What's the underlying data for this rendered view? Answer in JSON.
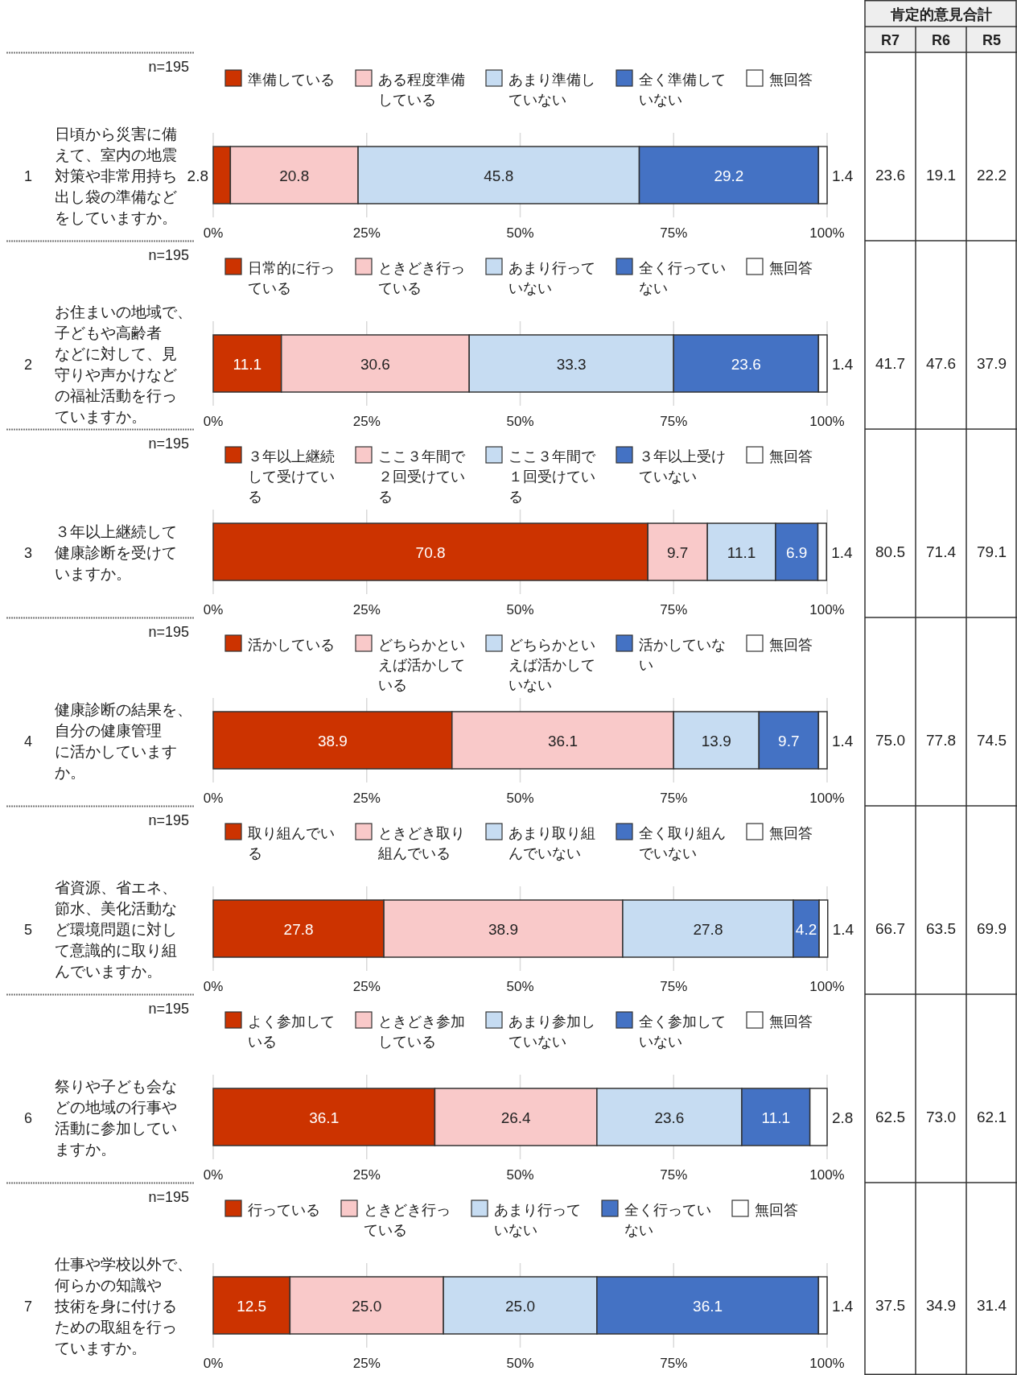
{
  "chart_data": [
    {
      "type": "bar",
      "orientation": "horizontal",
      "stacked": true,
      "title": "日頃から災害に備えて、室内の地震対策や非常用持ち出し袋の準備などをしていますか。",
      "annotations": [
        "1",
        "n=195"
      ],
      "categories": [
        null
      ],
      "legend": "top",
      "grid": "x",
      "data_labels": true,
      "xlim": [
        0,
        100
      ],
      "xticks": [
        {
          "value": 0,
          "label": "0%"
        },
        {
          "value": 25,
          "label": "25%"
        },
        {
          "value": 50,
          "label": "50%"
        },
        {
          "value": 75,
          "label": "75%"
        },
        {
          "value": 100,
          "label": "100%"
        }
      ],
      "series": [
        {
          "name": "準備している",
          "color": "#cc3300",
          "values": [
            2.8
          ]
        },
        {
          "name": "ある程度準備している",
          "color": "#f9c9c9",
          "values": [
            20.8
          ]
        },
        {
          "name": "あまり準備していない",
          "color": "#c6dcf2",
          "values": [
            45.8
          ]
        },
        {
          "name": "全く準備していない",
          "color": "#4472c4",
          "values": [
            29.2
          ]
        },
        {
          "name": "無回答",
          "color": "#ffffff",
          "values": [
            1.4
          ]
        }
      ]
    },
    {
      "type": "bar",
      "orientation": "horizontal",
      "stacked": true,
      "title": "お住まいの地域で、子どもや高齢者などに対して、見守りや声かけなどの福祉活動を行っていますか。",
      "annotations": [
        "2",
        "n=195"
      ],
      "categories": [
        null
      ],
      "legend": "top",
      "grid": "x",
      "data_labels": true,
      "xlim": [
        0,
        100
      ],
      "xticks": [
        {
          "value": 0,
          "label": "0%"
        },
        {
          "value": 25,
          "label": "25%"
        },
        {
          "value": 50,
          "label": "50%"
        },
        {
          "value": 75,
          "label": "75%"
        },
        {
          "value": 100,
          "label": "100%"
        }
      ],
      "series": [
        {
          "name": "日常的に行っている",
          "color": "#cc3300",
          "values": [
            11.1
          ]
        },
        {
          "name": "ときどき行っている",
          "color": "#f9c9c9",
          "values": [
            30.6
          ]
        },
        {
          "name": "あまり行っていない",
          "color": "#c6dcf2",
          "values": [
            33.3
          ]
        },
        {
          "name": "全く行っていない",
          "color": "#4472c4",
          "values": [
            23.6
          ]
        },
        {
          "name": "無回答",
          "color": "#ffffff",
          "values": [
            1.4
          ]
        }
      ]
    },
    {
      "type": "bar",
      "orientation": "horizontal",
      "stacked": true,
      "title": "３年以上継続して健康診断を受けていますか。",
      "annotations": [
        "3",
        "n=195"
      ],
      "categories": [
        null
      ],
      "legend": "top",
      "grid": "x",
      "data_labels": true,
      "xlim": [
        0,
        100
      ],
      "xticks": [
        {
          "value": 0,
          "label": "0%"
        },
        {
          "value": 25,
          "label": "25%"
        },
        {
          "value": 50,
          "label": "50%"
        },
        {
          "value": 75,
          "label": "75%"
        },
        {
          "value": 100,
          "label": "100%"
        }
      ],
      "series": [
        {
          "name": "３年以上継続して受けている",
          "color": "#cc3300",
          "values": [
            70.8
          ]
        },
        {
          "name": "ここ３年間で２回受けている",
          "color": "#f9c9c9",
          "values": [
            9.7
          ]
        },
        {
          "name": "ここ３年間で１回受けている",
          "color": "#c6dcf2",
          "values": [
            11.1
          ]
        },
        {
          "name": "３年以上受けていない",
          "color": "#4472c4",
          "values": [
            6.9
          ]
        },
        {
          "name": "無回答",
          "color": "#ffffff",
          "values": [
            1.4
          ]
        }
      ]
    },
    {
      "type": "bar",
      "orientation": "horizontal",
      "stacked": true,
      "title": "健康診断の結果を、自分の健康管理に活かしていますか。",
      "annotations": [
        "4",
        "n=195"
      ],
      "categories": [
        null
      ],
      "legend": "top",
      "grid": "x",
      "data_labels": true,
      "xlim": [
        0,
        100
      ],
      "xticks": [
        {
          "value": 0,
          "label": "0%"
        },
        {
          "value": 25,
          "label": "25%"
        },
        {
          "value": 50,
          "label": "50%"
        },
        {
          "value": 75,
          "label": "75%"
        },
        {
          "value": 100,
          "label": "100%"
        }
      ],
      "series": [
        {
          "name": "活かしている",
          "color": "#cc3300",
          "values": [
            38.9
          ]
        },
        {
          "name": "どちらかといえば活かしている",
          "color": "#f9c9c9",
          "values": [
            36.1
          ]
        },
        {
          "name": "どちらかといえば活かしていない",
          "color": "#c6dcf2",
          "values": [
            13.9
          ]
        },
        {
          "name": "活かしていない",
          "color": "#4472c4",
          "values": [
            9.7
          ]
        },
        {
          "name": "無回答",
          "color": "#ffffff",
          "values": [
            1.4
          ]
        }
      ]
    },
    {
      "type": "bar",
      "orientation": "horizontal",
      "stacked": true,
      "title": "省資源、省エネ、節水、美化活動など環境問題に対して意識的に取り組んでいますか。",
      "annotations": [
        "5",
        "n=195"
      ],
      "categories": [
        null
      ],
      "legend": "top",
      "grid": "x",
      "data_labels": true,
      "xlim": [
        0,
        100
      ],
      "xticks": [
        {
          "value": 0,
          "label": "0%"
        },
        {
          "value": 25,
          "label": "25%"
        },
        {
          "value": 50,
          "label": "50%"
        },
        {
          "value": 75,
          "label": "75%"
        },
        {
          "value": 100,
          "label": "100%"
        }
      ],
      "series": [
        {
          "name": "取り組んでいる",
          "color": "#cc3300",
          "values": [
            27.8
          ]
        },
        {
          "name": "ときどき取り組んでいる",
          "color": "#f9c9c9",
          "values": [
            38.9
          ]
        },
        {
          "name": "あまり取り組んでいない",
          "color": "#c6dcf2",
          "values": [
            27.8
          ]
        },
        {
          "name": "全く取り組んでいない",
          "color": "#4472c4",
          "values": [
            4.2
          ]
        },
        {
          "name": "無回答",
          "color": "#ffffff",
          "values": [
            1.4
          ]
        }
      ]
    },
    {
      "type": "bar",
      "orientation": "horizontal",
      "stacked": true,
      "title": "祭りや子ども会などの地域の行事や活動に参加していますか。",
      "annotations": [
        "6",
        "n=195"
      ],
      "categories": [
        null
      ],
      "legend": "top",
      "grid": "x",
      "data_labels": true,
      "xlim": [
        0,
        100
      ],
      "xticks": [
        {
          "value": 0,
          "label": "0%"
        },
        {
          "value": 25,
          "label": "25%"
        },
        {
          "value": 50,
          "label": "50%"
        },
        {
          "value": 75,
          "label": "75%"
        },
        {
          "value": 100,
          "label": "100%"
        }
      ],
      "series": [
        {
          "name": "よく参加している",
          "color": "#cc3300",
          "values": [
            36.1
          ]
        },
        {
          "name": "ときどき参加している",
          "color": "#f9c9c9",
          "values": [
            26.4
          ]
        },
        {
          "name": "あまり参加していない",
          "color": "#c6dcf2",
          "values": [
            23.6
          ]
        },
        {
          "name": "全く参加していない",
          "color": "#4472c4",
          "values": [
            11.1
          ]
        },
        {
          "name": "無回答",
          "color": "#ffffff",
          "values": [
            2.8
          ]
        }
      ]
    },
    {
      "type": "bar",
      "orientation": "horizontal",
      "stacked": true,
      "title": "仕事や学校以外で、何らかの知識や技術を身に付けるための取組を行っていますか。",
      "annotations": [
        "7",
        "n=195"
      ],
      "categories": [
        null
      ],
      "legend": "top",
      "grid": "x",
      "data_labels": true,
      "xlim": [
        0,
        100
      ],
      "xticks": [
        {
          "value": 0,
          "label": "0%"
        },
        {
          "value": 25,
          "label": "25%"
        },
        {
          "value": 50,
          "label": "50%"
        },
        {
          "value": 75,
          "label": "75%"
        },
        {
          "value": 100,
          "label": "100%"
        }
      ],
      "series": [
        {
          "name": "行っている",
          "color": "#cc3300",
          "values": [
            12.5
          ]
        },
        {
          "name": "ときどき行っている",
          "color": "#f9c9c9",
          "values": [
            25.0
          ],
          "value_labels": [
            "25.0"
          ]
        },
        {
          "name": "あまり行っていない",
          "color": "#c6dcf2",
          "values": [
            25.0
          ],
          "value_labels": [
            "25.0"
          ]
        },
        {
          "name": "全く行っていない",
          "color": "#4472c4",
          "values": [
            36.1
          ]
        },
        {
          "name": "無回答",
          "color": "#ffffff",
          "values": [
            1.4
          ]
        }
      ]
    },
    {
      "type": "other",
      "title": "肯定的意見合計",
      "categories": [
        "R7",
        "R6",
        "R5"
      ],
      "cell_labels": [
        [
          "23.6",
          "19.1",
          "22.2"
        ],
        [
          "41.7",
          "47.6",
          "37.9"
        ],
        [
          "80.5",
          "71.4",
          "79.1"
        ],
        [
          "75.0",
          "77.8",
          "74.5"
        ],
        [
          "66.7",
          "63.5",
          "69.9"
        ],
        [
          "62.5",
          "73.0",
          "62.1"
        ],
        [
          "37.5",
          "34.9",
          "31.4"
        ]
      ]
    }
  ]
}
